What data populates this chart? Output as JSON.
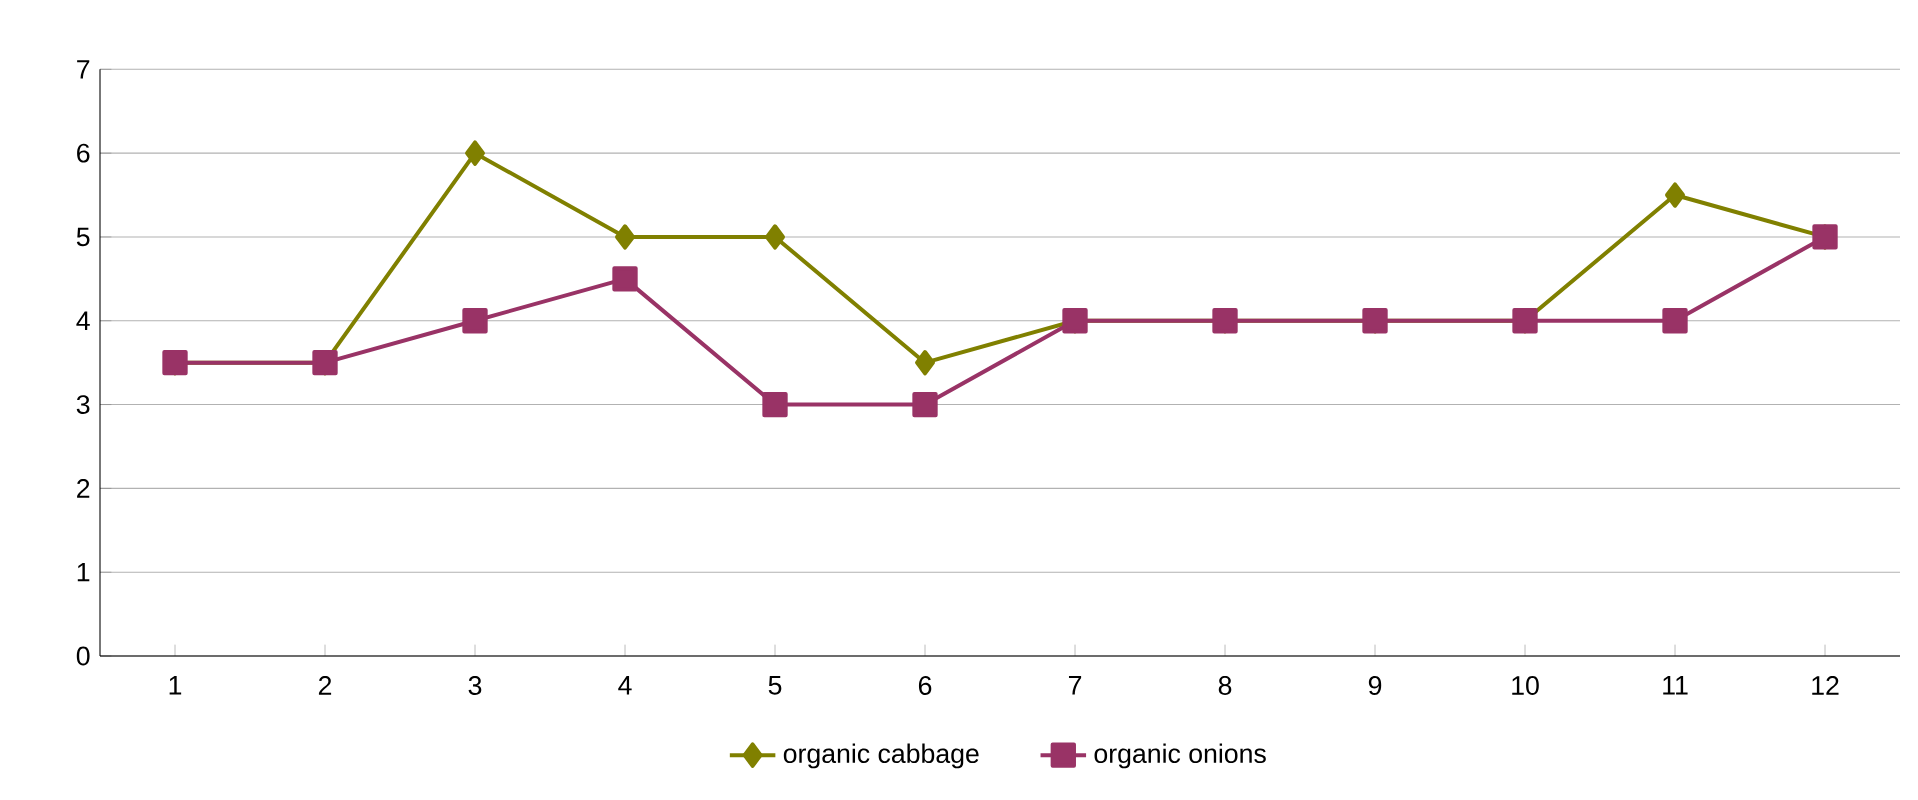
{
  "chart_data": {
    "type": "line",
    "categories": [
      "1",
      "2",
      "3",
      "4",
      "5",
      "6",
      "7",
      "8",
      "9",
      "10",
      "11",
      "12"
    ],
    "series": [
      {
        "name": "organic cabbage",
        "color": "#808000",
        "marker": "diamond",
        "values": [
          3.5,
          3.5,
          6,
          5,
          5,
          3.5,
          4,
          4,
          4,
          4,
          5.5,
          5
        ]
      },
      {
        "name": "organic onions",
        "color": "#993366",
        "marker": "square",
        "values": [
          3.5,
          3.5,
          4,
          4.5,
          3,
          3,
          4,
          4,
          4,
          4,
          4,
          5
        ]
      }
    ],
    "ylim": [
      0,
      7
    ],
    "yticks": [
      0,
      1,
      2,
      3,
      4,
      5,
      6,
      7
    ],
    "grid": "y",
    "legend": "bottom"
  }
}
